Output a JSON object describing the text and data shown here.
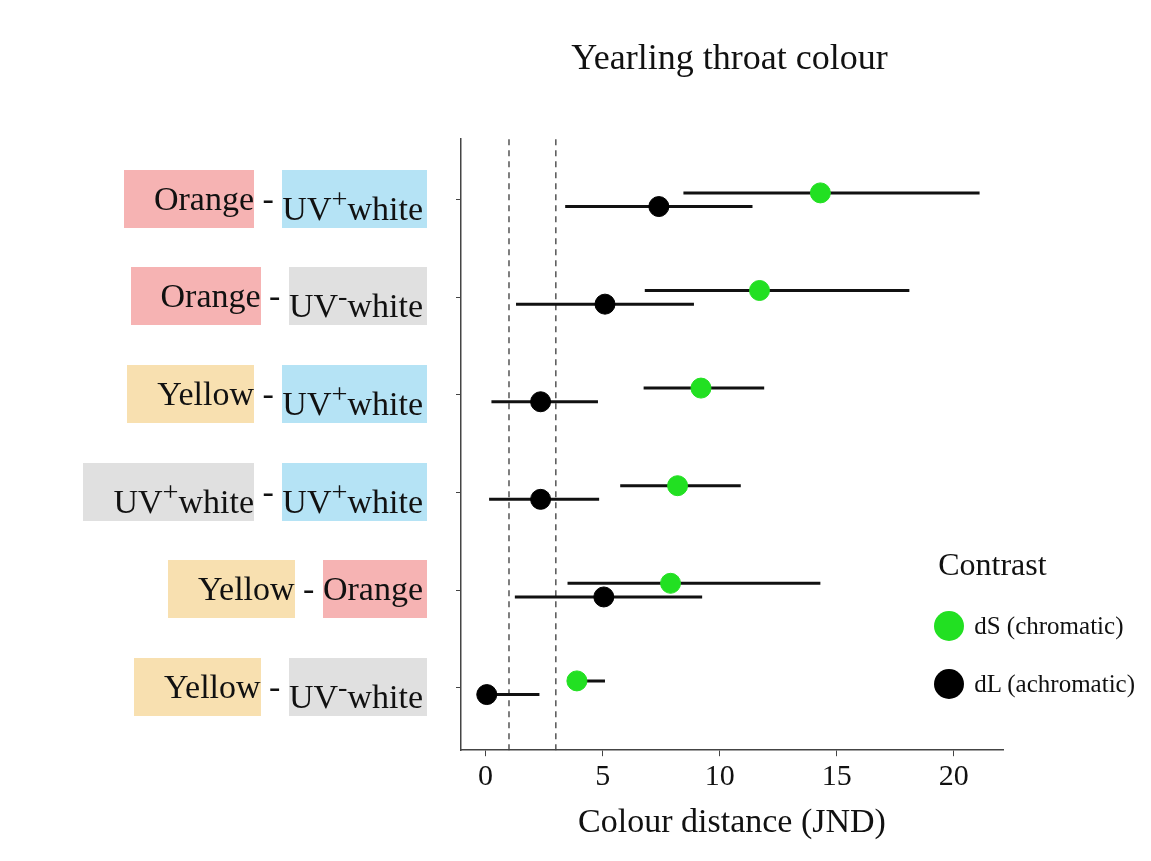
{
  "chart_data": {
    "type": "scatter",
    "orientation": "horizontal",
    "title": "Yearling throat colour",
    "xlabel": "Colour distance (JND)",
    "legend_title": "Contrast",
    "categories": [
      "Orange - UV$^{+}$white",
      "Orange - UV$^{-}$white",
      "Yellow - UV$^{+}$white",
      "UV$^{+}$white - UV$^{+}$white",
      "Yellow - Orange",
      "Yellow - UV$^{-}$white"
    ],
    "xlim": [
      -1.05,
      22.1
    ],
    "xticks": [
      0,
      5,
      10,
      15,
      20
    ],
    "grid": false,
    "legend": "bottom right",
    "marker": "circle",
    "ref_lines": [
      {
        "axis": "x",
        "value": 1,
        "line_style": "dashed",
        "color": "#555555"
      },
      {
        "axis": "x",
        "value": 3,
        "line_style": "dashed",
        "color": "#555555"
      }
    ],
    "series": [
      {
        "name": "dS (chromatic)",
        "color": "#22e022",
        "values": [
          14.3,
          11.7,
          9.2,
          8.2,
          7.9,
          3.9
        ],
        "errors": [
          [
            8.45,
            21.1
          ],
          [
            6.8,
            18.1
          ],
          [
            6.75,
            11.9
          ],
          [
            5.75,
            10.9
          ],
          [
            3.5,
            14.3
          ],
          [
            3.6,
            5.1
          ]
        ]
      },
      {
        "name": "dL (achromatic)",
        "color": "#000000",
        "values": [
          7.4,
          5.1,
          2.35,
          2.35,
          5.05,
          0.05
        ],
        "errors": [
          [
            3.4,
            11.4
          ],
          [
            1.3,
            8.9
          ],
          [
            0.25,
            4.8
          ],
          [
            0.15,
            4.85
          ],
          [
            1.25,
            9.25
          ],
          [
            -0.3,
            2.3
          ]
        ]
      }
    ]
  }
}
